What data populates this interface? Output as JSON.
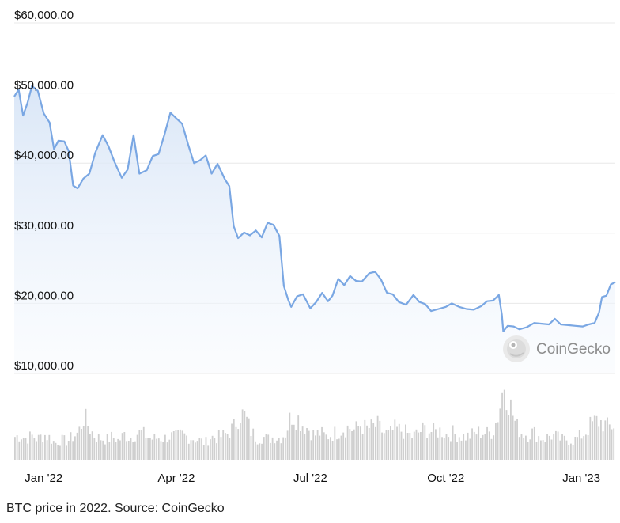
{
  "caption": "BTC price in 2022. Source: CoinGecko",
  "watermark": {
    "text": "CoinGecko",
    "icon": "gecko-logo-icon"
  },
  "colors": {
    "line": "#7aa7e3",
    "area_top": "#d6e4f6",
    "area_bottom": "#f7fafe",
    "grid": "#e8e8e8",
    "volume": "#cfcfcf"
  },
  "chart_data": {
    "type": "line",
    "title": "",
    "xlabel": "",
    "ylabel": "",
    "ylim": [
      10000,
      60000
    ],
    "y_ticks": [
      {
        "value": 10000,
        "label": "$10,000.00"
      },
      {
        "value": 20000,
        "label": "$20,000.00"
      },
      {
        "value": 30000,
        "label": "$30,000.00"
      },
      {
        "value": 40000,
        "label": "$40,000.00"
      },
      {
        "value": 50000,
        "label": "$50,000.00"
      },
      {
        "value": 60000,
        "label": "$60,000.00"
      }
    ],
    "x_ticks": [
      {
        "date": "2022-01-01",
        "label": "Jan '22"
      },
      {
        "date": "2022-04-01",
        "label": "Apr '22"
      },
      {
        "date": "2022-07-01",
        "label": "Jul '22"
      },
      {
        "date": "2022-10-01",
        "label": "Oct '22"
      },
      {
        "date": "2023-01-01",
        "label": "Jan '23"
      }
    ],
    "x_range": [
      "2021-12-12",
      "2023-01-24"
    ],
    "grid": true,
    "series": [
      {
        "x": [
          "2021-12-12",
          "2021-12-15",
          "2021-12-18",
          "2021-12-21",
          "2021-12-24",
          "2021-12-28",
          "2022-01-01",
          "2022-01-05",
          "2022-01-08",
          "2022-01-11",
          "2022-01-15",
          "2022-01-18",
          "2022-01-21",
          "2022-01-24",
          "2022-01-28",
          "2022-02-01",
          "2022-02-05",
          "2022-02-10",
          "2022-02-14",
          "2022-02-18",
          "2022-02-23",
          "2022-02-27",
          "2022-03-03",
          "2022-03-07",
          "2022-03-12",
          "2022-03-16",
          "2022-03-20",
          "2022-03-24",
          "2022-03-28",
          "2022-04-01",
          "2022-04-05",
          "2022-04-09",
          "2022-04-13",
          "2022-04-17",
          "2022-04-21",
          "2022-04-25",
          "2022-04-29",
          "2022-05-04",
          "2022-05-07",
          "2022-05-10",
          "2022-05-13",
          "2022-05-17",
          "2022-05-21",
          "2022-05-25",
          "2022-05-29",
          "2022-06-02",
          "2022-06-06",
          "2022-06-10",
          "2022-06-13",
          "2022-06-16",
          "2022-06-18",
          "2022-06-22",
          "2022-06-26",
          "2022-07-01",
          "2022-07-05",
          "2022-07-09",
          "2022-07-13",
          "2022-07-16",
          "2022-07-20",
          "2022-07-24",
          "2022-07-28",
          "2022-08-01",
          "2022-08-05",
          "2022-08-10",
          "2022-08-14",
          "2022-08-18",
          "2022-08-22",
          "2022-08-26",
          "2022-08-30",
          "2022-09-04",
          "2022-09-09",
          "2022-09-13",
          "2022-09-17",
          "2022-09-21",
          "2022-09-26",
          "2022-10-01",
          "2022-10-05",
          "2022-10-10",
          "2022-10-15",
          "2022-10-20",
          "2022-10-25",
          "2022-10-29",
          "2022-11-02",
          "2022-11-06",
          "2022-11-08",
          "2022-11-09",
          "2022-11-12",
          "2022-11-16",
          "2022-11-20",
          "2022-11-25",
          "2022-11-30",
          "2022-12-05",
          "2022-12-10",
          "2022-12-14",
          "2022-12-18",
          "2022-12-23",
          "2022-12-28",
          "2023-01-02",
          "2023-01-06",
          "2023-01-10",
          "2023-01-13",
          "2023-01-15",
          "2023-01-18",
          "2023-01-21",
          "2023-01-24"
        ],
        "values": [
          49500,
          50500,
          46800,
          48600,
          51000,
          50300,
          47100,
          45800,
          42000,
          43200,
          43100,
          41700,
          36800,
          36400,
          37800,
          38500,
          41500,
          44000,
          42400,
          40200,
          37900,
          39100,
          44000,
          38500,
          39000,
          41000,
          41300,
          44100,
          47200,
          46400,
          45600,
          42700,
          40000,
          40400,
          41100,
          38500,
          39900,
          37700,
          36700,
          31000,
          29300,
          30100,
          29700,
          30400,
          29400,
          31500,
          31200,
          29600,
          22500,
          20500,
          19500,
          21000,
          21300,
          19300,
          20200,
          21500,
          20300,
          21100,
          23500,
          22600,
          23900,
          23200,
          23100,
          24300,
          24500,
          23400,
          21500,
          21300,
          20200,
          19800,
          21200,
          20200,
          19900,
          18900,
          19200,
          19500,
          20000,
          19500,
          19200,
          19100,
          19600,
          20300,
          20400,
          21200,
          18400,
          16000,
          16800,
          16700,
          16300,
          16600,
          17200,
          17100,
          17000,
          17800,
          17000,
          16900,
          16800,
          16700,
          17000,
          17200,
          18700,
          20900,
          21100,
          22700,
          23000
        ]
      }
    ],
    "volume_relative": [
      0.3,
      0.32,
      0.28,
      0.31,
      0.27,
      0.33,
      0.29,
      0.22,
      0.26,
      0.24,
      0.3,
      0.35,
      0.55,
      0.4,
      0.3,
      0.28,
      0.27,
      0.3,
      0.25,
      0.33,
      0.29,
      0.34,
      0.35,
      0.3,
      0.27,
      0.29,
      0.28,
      0.31,
      0.3,
      0.33,
      0.3,
      0.28,
      0.26,
      0.22,
      0.3,
      0.29,
      0.31,
      0.35,
      0.42,
      0.6,
      0.55,
      0.37,
      0.28,
      0.3,
      0.27,
      0.3,
      0.28,
      0.35,
      0.58,
      0.55,
      0.45,
      0.4,
      0.32,
      0.35,
      0.3,
      0.33,
      0.36,
      0.4,
      0.42,
      0.38,
      0.45,
      0.4,
      0.42,
      0.44,
      0.35,
      0.33,
      0.4,
      0.38,
      0.35,
      0.3,
      0.35,
      0.4,
      0.37,
      0.36,
      0.38,
      0.33,
      0.35,
      0.32,
      0.3,
      0.31,
      0.35,
      0.36,
      0.34,
      0.37,
      0.6,
      1.0,
      0.7,
      0.45,
      0.35,
      0.33,
      0.36,
      0.3,
      0.28,
      0.32,
      0.3,
      0.26,
      0.27,
      0.25,
      0.3,
      0.35,
      0.45,
      0.5,
      0.48,
      0.42,
      0.45
    ]
  }
}
